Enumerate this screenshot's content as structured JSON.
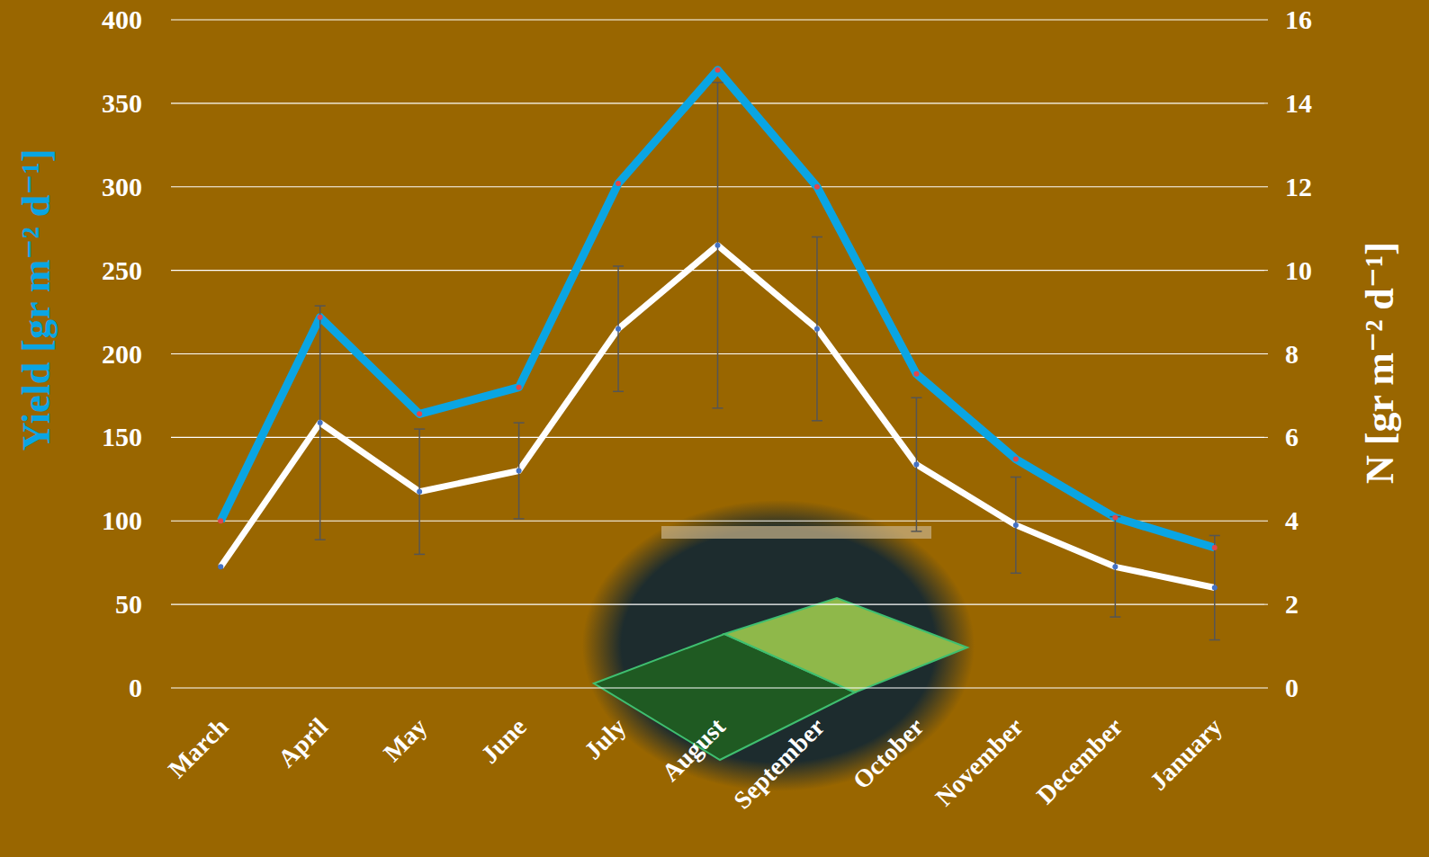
{
  "chart_data": {
    "type": "line",
    "categories": [
      "March",
      "April",
      "May",
      "June",
      "July",
      "August",
      "September",
      "October",
      "November",
      "December",
      "January"
    ],
    "series": [
      {
        "color": "#0aa5e3",
        "marker": "circle",
        "values": [
          100,
          222,
          164,
          180,
          302,
          370,
          300,
          188,
          137,
          102,
          84
        ]
      },
      {
        "color": "#ffffff",
        "marker": "circle",
        "axis": "y2",
        "values": [
          2.9,
          6.35,
          4.7,
          5.2,
          8.6,
          10.6,
          8.6,
          5.35,
          3.9,
          2.9,
          2.4
        ],
        "errors": [
          null,
          2.8,
          1.5,
          1.15,
          1.5,
          3.9,
          2.2,
          1.6,
          1.15,
          1.2,
          1.25
        ]
      }
    ],
    "ylabel": "Yield [gr m⁻² d⁻¹]",
    "y2label": "N [gr m⁻² d⁻¹]",
    "ylim": [
      0,
      400
    ],
    "yticks": [
      0,
      50,
      100,
      150,
      200,
      250,
      300,
      350,
      400
    ],
    "y2lim": [
      0,
      16
    ],
    "y2ticks": [
      0,
      2,
      4,
      6,
      8,
      10,
      12,
      14,
      16
    ],
    "grid": true
  }
}
